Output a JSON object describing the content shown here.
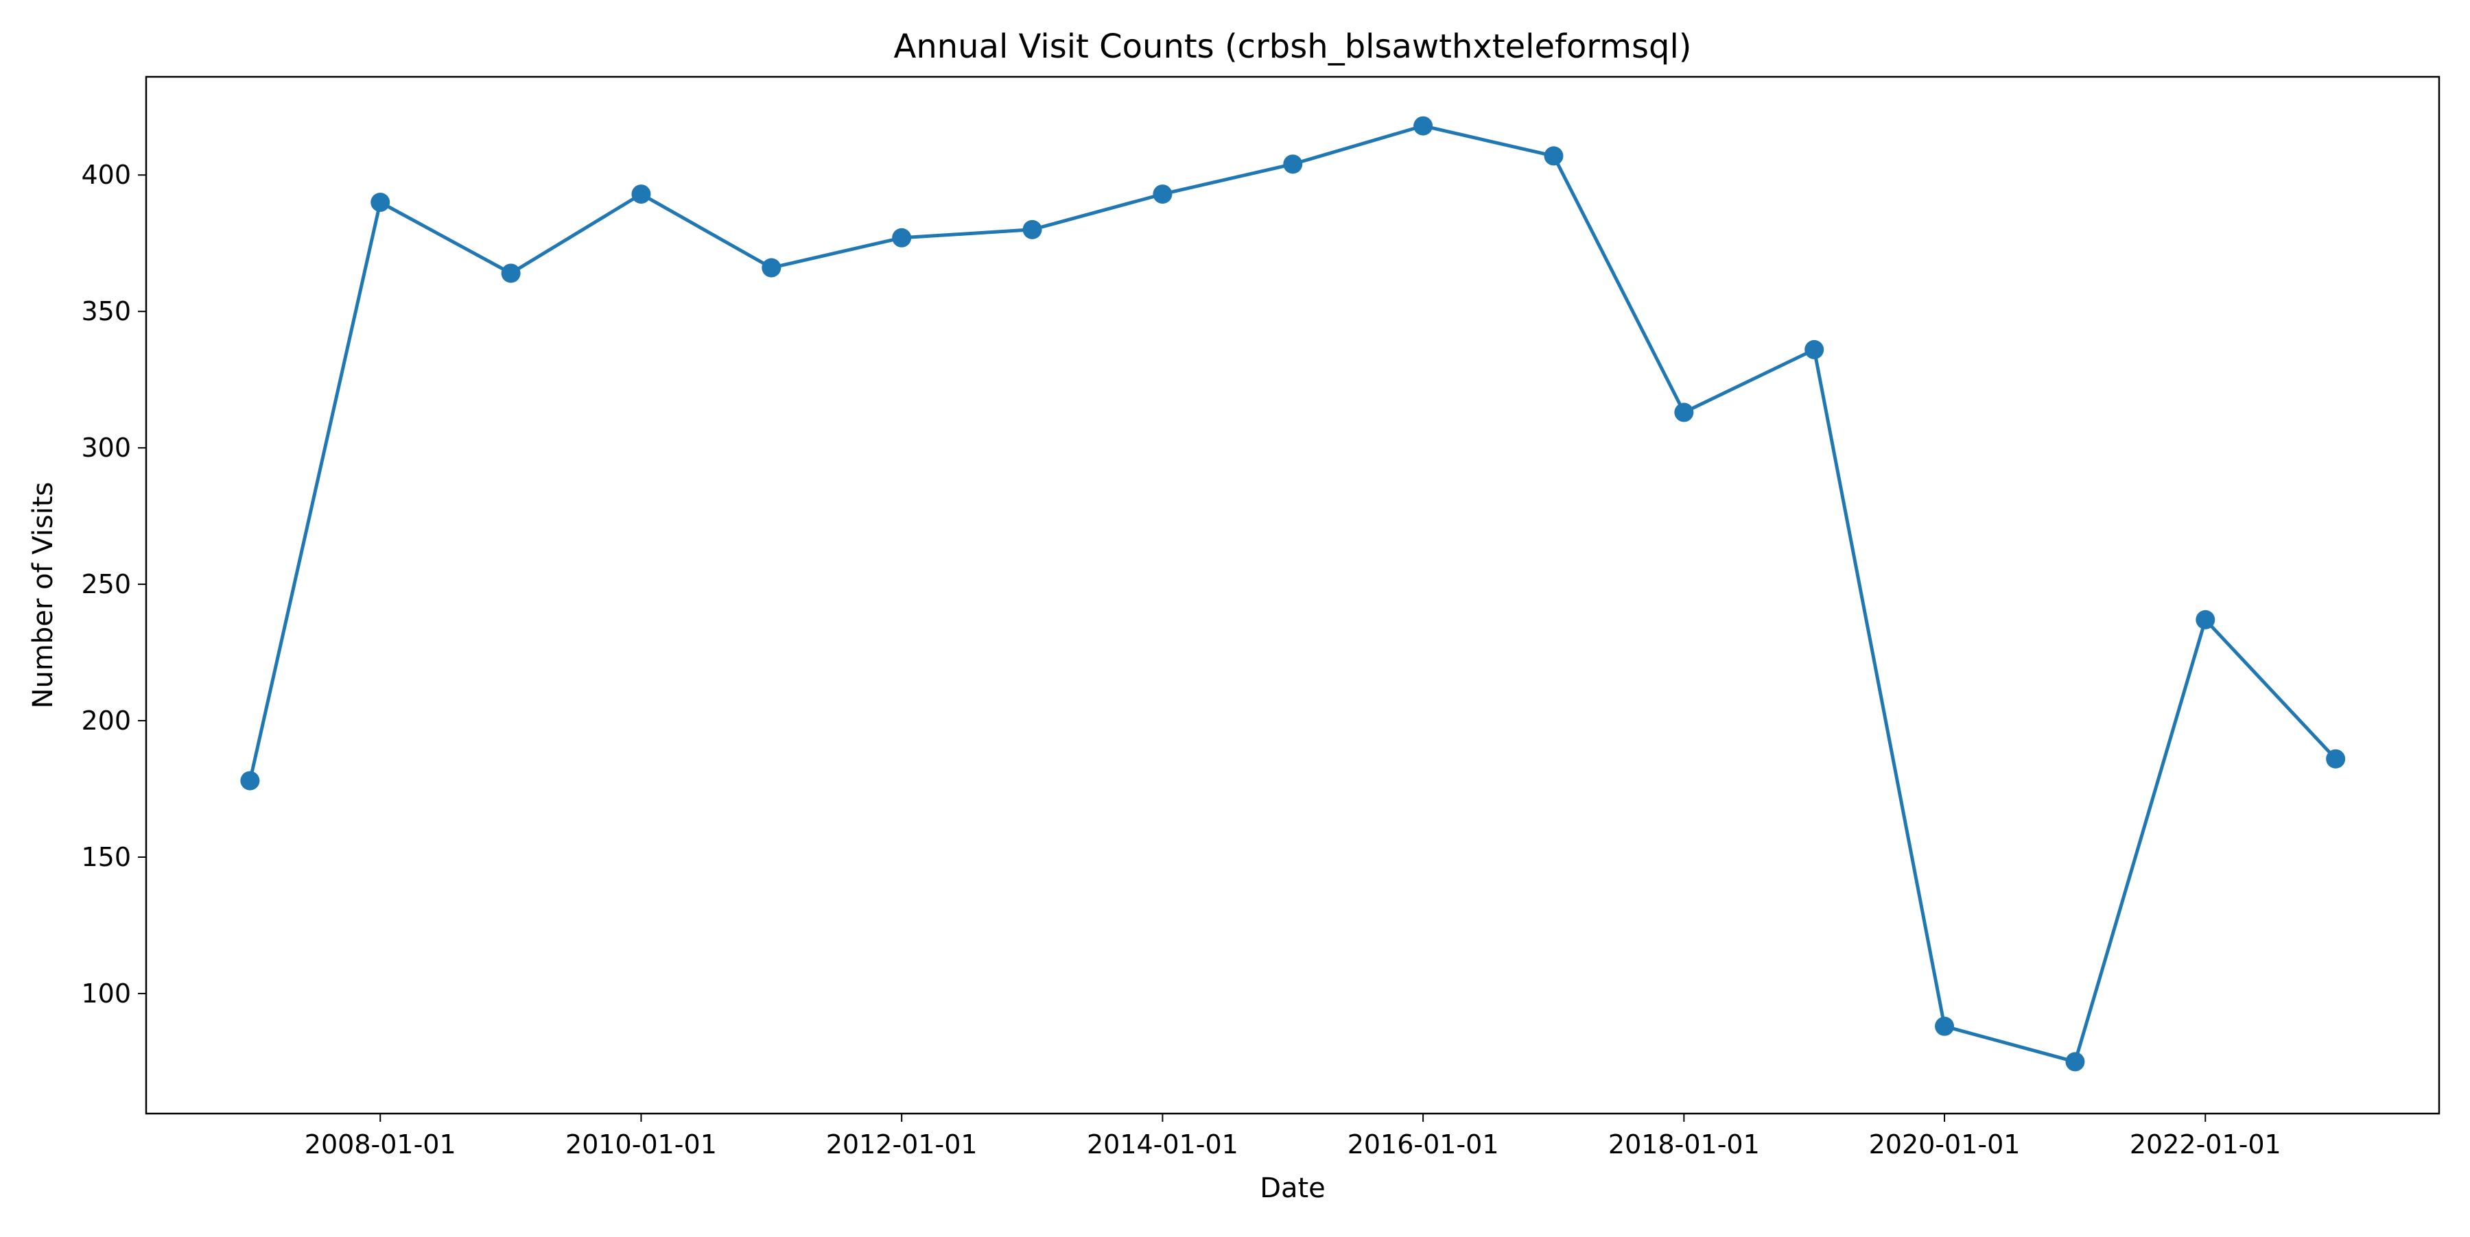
{
  "chart_data": {
    "type": "line",
    "title": "Annual Visit Counts (crbsh_blsawthxteleformsql)",
    "xlabel": "Date",
    "ylabel": "Number of Visits",
    "x": [
      "2007-01-01",
      "2008-01-01",
      "2009-01-01",
      "2010-01-01",
      "2011-01-01",
      "2012-01-01",
      "2013-01-01",
      "2014-01-01",
      "2015-01-01",
      "2016-01-01",
      "2017-01-01",
      "2018-01-01",
      "2019-01-01",
      "2020-01-01",
      "2021-01-01",
      "2022-01-01",
      "2023-01-01"
    ],
    "series": [
      {
        "values": [
          178,
          390,
          364,
          393,
          366,
          377,
          380,
          393,
          404,
          418,
          407,
          313,
          336,
          88,
          75,
          237,
          186
        ],
        "color": "#1f77b4",
        "marker": "circle"
      }
    ],
    "xlim": [
      "2006-03-16",
      "2023-10-18"
    ],
    "ylim": [
      56,
      436
    ],
    "x_ticks": [
      "2008-01-01",
      "2010-01-01",
      "2012-01-01",
      "2014-01-01",
      "2016-01-01",
      "2018-01-01",
      "2020-01-01",
      "2022-01-01"
    ],
    "y_ticks": [
      100,
      150,
      200,
      250,
      300,
      350,
      400
    ],
    "grid": false,
    "legend": "none"
  }
}
